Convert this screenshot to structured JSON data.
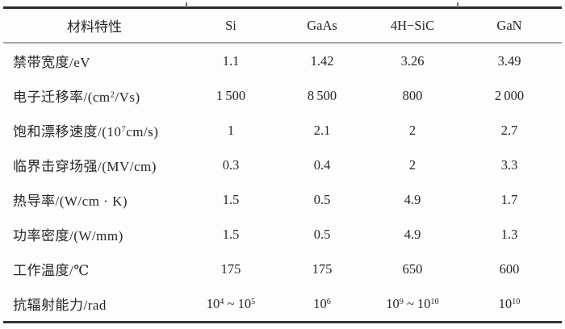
{
  "table": {
    "title": "semiconductor-material-properties-comparison",
    "header": [
      "材料特性",
      "Si",
      "GaAs",
      "4H−SiC",
      "GaN"
    ],
    "rows": [
      {
        "label": "禁带宽度/eV",
        "values": [
          "1.1",
          "1.42",
          "3.26",
          "3.49"
        ]
      },
      {
        "label": "电子迁移率/(cm^2/Vs)",
        "values": [
          "1 500",
          "8 500",
          "800",
          "2 000"
        ]
      },
      {
        "label": "饱和漂移速度/(10^7cm/s)",
        "values": [
          "1",
          "2.1",
          "2",
          "2.7"
        ]
      },
      {
        "label": "临界击穿场强/(MV/cm)",
        "values": [
          "0.3",
          "0.4",
          "2",
          "3.3"
        ]
      },
      {
        "label": "热导率/(W/cm · K)",
        "values": [
          "1.5",
          "0.5",
          "4.9",
          "1.7"
        ]
      },
      {
        "label": "功率密度/(W/mm)",
        "values": [
          "1.5",
          "0.5",
          "4.9",
          "1.3"
        ]
      },
      {
        "label": "工作温度/℃",
        "values": [
          "175",
          "175",
          "650",
          "600"
        ]
      },
      {
        "label": "抗辐射能力/rad",
        "values": [
          "10^4 ~ 10^5",
          "10^6",
          "10^9 ~ 10^10",
          "10^10"
        ]
      }
    ],
    "rules_color_dark": "#2b2b2b",
    "rules_color_light": "#a6a6a6",
    "text_color": "#262626"
  }
}
